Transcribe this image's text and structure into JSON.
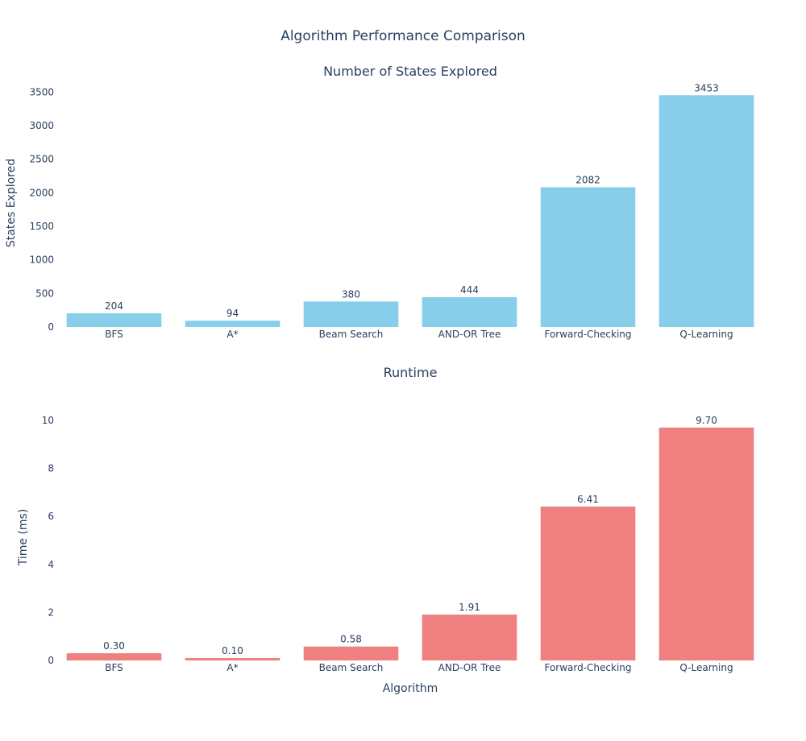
{
  "title": "Algorithm Performance Comparison",
  "chart_data": [
    {
      "type": "bar",
      "title": "Number of States Explored",
      "xlabel": "",
      "ylabel": "States Explored",
      "categories": [
        "BFS",
        "A*",
        "Beam Search",
        "AND-OR Tree",
        "Forward-Checking",
        "Q-Learning"
      ],
      "values": [
        204,
        94,
        380,
        444,
        2082,
        3453
      ],
      "value_labels": [
        "204",
        "94",
        "380",
        "444",
        "2082",
        "3453"
      ],
      "ylim": [
        0,
        3600
      ],
      "yticks": [
        0,
        500,
        1000,
        1500,
        2000,
        2500,
        3000,
        3500
      ],
      "ytick_labels": [
        "0",
        "500",
        "1000",
        "1500",
        "2000",
        "2500",
        "3000",
        "3500"
      ],
      "color": "#87ceeb",
      "grid": false
    },
    {
      "type": "bar",
      "title": "Runtime",
      "xlabel": "Algorithm",
      "ylabel": "Time (ms)",
      "categories": [
        "BFS",
        "A*",
        "Beam Search",
        "AND-OR Tree",
        "Forward-Checking",
        "Q-Learning"
      ],
      "values": [
        0.3,
        0.1,
        0.58,
        1.91,
        6.41,
        9.7
      ],
      "value_labels": [
        "0.30",
        "0.10",
        "0.58",
        "1.91",
        "6.41",
        "9.70"
      ],
      "ylim": [
        0,
        10.6
      ],
      "yticks": [
        0,
        2,
        4,
        6,
        8,
        10
      ],
      "ytick_labels": [
        "0",
        "2",
        "4",
        "6",
        "8",
        "10"
      ],
      "color": "#f08080",
      "grid": false
    }
  ]
}
